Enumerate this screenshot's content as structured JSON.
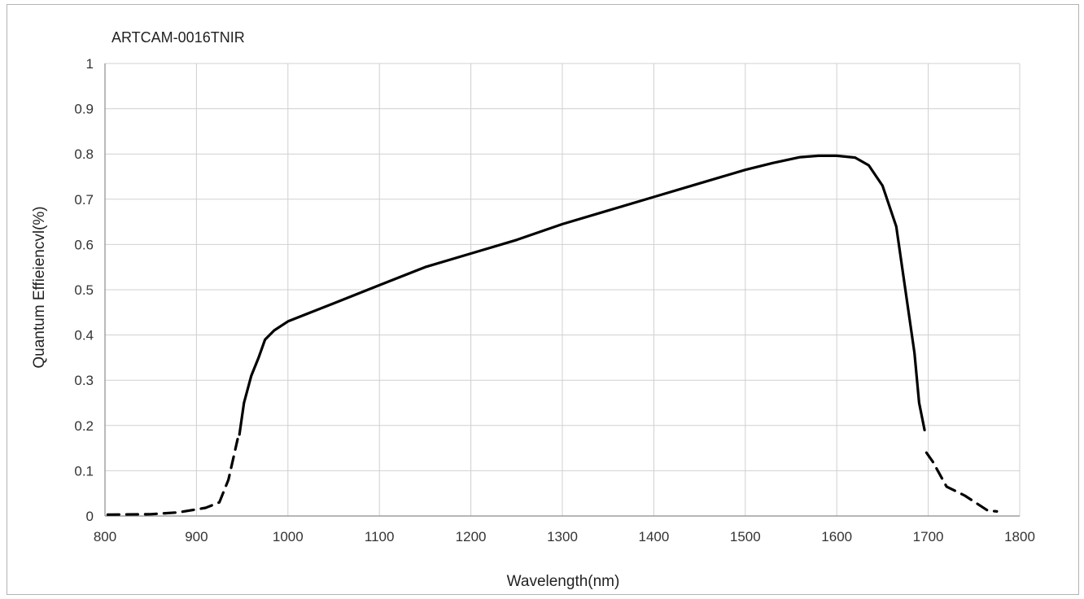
{
  "chart_data": {
    "type": "line",
    "title": "ARTCAM-0016TNIR",
    "xlabel": "Wavelength(nm)",
    "ylabel": "Quantum  Effieiencvl(%)",
    "xlim": [
      800,
      1800
    ],
    "ylim": [
      0,
      1
    ],
    "xticks": [
      800,
      900,
      1000,
      1100,
      1200,
      1300,
      1400,
      1500,
      1600,
      1700,
      1800
    ],
    "yticks": [
      "0",
      "0.1",
      "0.2",
      "0.3",
      "0.4",
      "0.5",
      "0.6",
      "0.7",
      "0.8",
      "0.9",
      "1"
    ],
    "grid": true,
    "line_color": "#000000",
    "series": [
      {
        "style": "dashed",
        "x": [
          803,
          850,
          880,
          910,
          925,
          935,
          945
        ],
        "y": [
          0.003,
          0.004,
          0.008,
          0.018,
          0.03,
          0.08,
          0.17
        ]
      },
      {
        "style": "solid",
        "x": [
          947,
          952,
          960,
          968,
          975,
          985,
          1000,
          1050,
          1100,
          1150,
          1200,
          1250,
          1300,
          1350,
          1400,
          1450,
          1500,
          1530,
          1560,
          1580,
          1600,
          1620,
          1635,
          1650,
          1665,
          1675,
          1685,
          1690,
          1696
        ],
        "y": [
          0.18,
          0.25,
          0.31,
          0.35,
          0.39,
          0.41,
          0.43,
          0.47,
          0.51,
          0.55,
          0.58,
          0.61,
          0.645,
          0.675,
          0.705,
          0.735,
          0.765,
          0.78,
          0.793,
          0.796,
          0.796,
          0.792,
          0.775,
          0.73,
          0.64,
          0.5,
          0.36,
          0.25,
          0.19
        ]
      },
      {
        "style": "dashed",
        "x": [
          1698,
          1705,
          1720,
          1740,
          1765,
          1775
        ],
        "y": [
          0.14,
          0.12,
          0.065,
          0.045,
          0.012,
          0.01
        ]
      }
    ]
  }
}
